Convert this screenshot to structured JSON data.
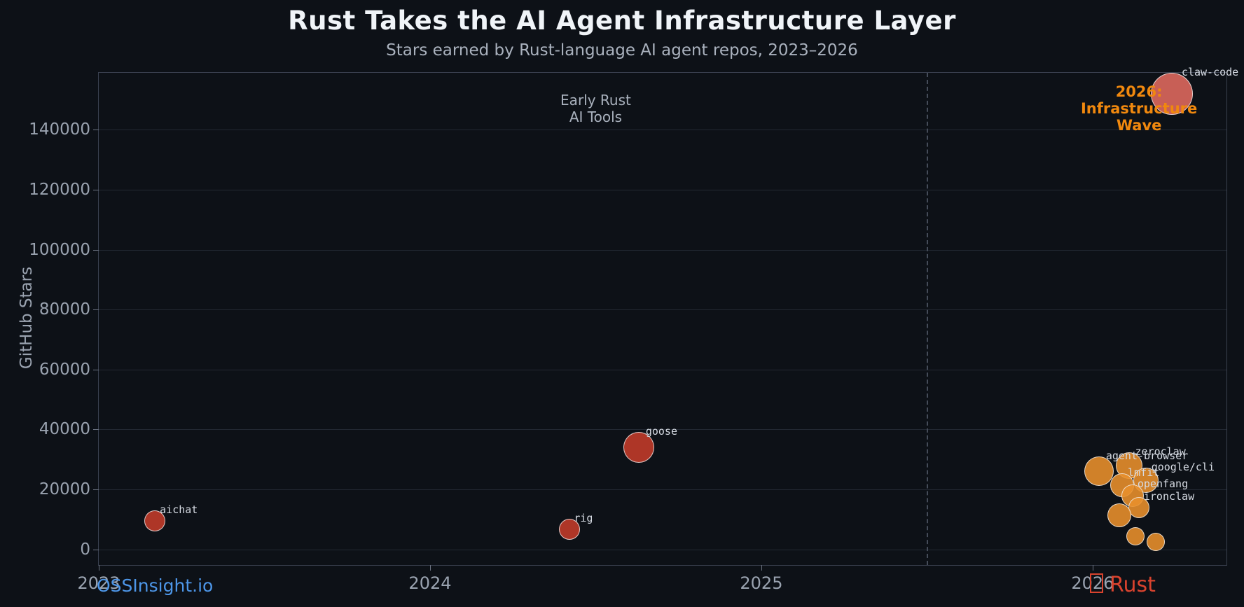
{
  "chart": {
    "title": "Rust Takes the AI Agent Infrastructure Layer",
    "subtitle": "Stars earned by Rust-language AI agent repos, 2023–2026",
    "ylabel": "GitHub Stars"
  },
  "footer": {
    "left": "OSSInsight.io",
    "right": "Rust",
    "right_icon": "crab-emoji-missing-glyph"
  },
  "colors": {
    "background": "#0d1117",
    "grid": "#232933",
    "spine": "#3a4150",
    "tick_text": "#9aa3b0",
    "title_text": "#f0f4f8",
    "subtitle_text": "#a9b1bd",
    "early_red": "#c23b2a",
    "wave_orange": "#e8902c",
    "highlight_salmon": "#e06a5e",
    "annotation_orange": "#f0880e",
    "footer_blue": "#4d96e8",
    "rust_red": "#d9432e"
  },
  "chart_data": {
    "type": "scatter",
    "title": "Rust Takes the AI Agent Infrastructure Layer",
    "subtitle": "Stars earned by Rust-language AI agent repos, 2023–2026",
    "xlabel": "",
    "ylabel": "GitHub Stars",
    "xlim": [
      2023,
      2026.404
    ],
    "ylim": [
      -5200,
      159000
    ],
    "x_ticks": [
      2023,
      2024,
      2025,
      2026
    ],
    "y_ticks": [
      0,
      20000,
      40000,
      60000,
      80000,
      100000,
      120000,
      140000
    ],
    "grid": "horizontal",
    "legend": "none",
    "vline": {
      "x": 2025.5,
      "style": "dashed"
    },
    "points": [
      {
        "repo": "aichat",
        "x": 2023.17,
        "stars": 9500,
        "r": 15,
        "color": "#c23b2a",
        "label_shown": true
      },
      {
        "repo": "rig",
        "x": 2024.42,
        "stars": 6800,
        "r": 15,
        "color": "#c23b2a",
        "label_shown": true
      },
      {
        "repo": "goose",
        "x": 2024.63,
        "stars": 34000,
        "r": 22,
        "color": "#c23b2a",
        "label_shown": true
      },
      {
        "repo": "agent-browser",
        "x": 2026.02,
        "stars": 26000,
        "r": 21,
        "color": "#e8902c",
        "label_shown": true
      },
      {
        "repo": "zeroclaw",
        "x": 2026.11,
        "stars": 28000,
        "r": 19,
        "color": "#e8902c",
        "label_shown": true
      },
      {
        "repo": "lmfit",
        "x": 2026.09,
        "stars": 21500,
        "r": 17,
        "color": "#e8902c",
        "label_shown": true
      },
      {
        "repo": "google/cli",
        "x": 2026.16,
        "stars": 23000,
        "r": 18,
        "color": "#e8902c",
        "label_shown": true
      },
      {
        "repo": "openfang",
        "x": 2026.12,
        "stars": 18000,
        "r": 16,
        "color": "#e8902c",
        "label_shown": true
      },
      {
        "repo": "ironclaw",
        "x": 2026.14,
        "stars": 14000,
        "r": 15,
        "color": "#e8902c",
        "label_shown": true
      },
      {
        "repo": "",
        "x": 2026.08,
        "stars": 11400,
        "r": 17,
        "color": "#e8902c",
        "label_shown": false
      },
      {
        "repo": "",
        "x": 2026.13,
        "stars": 4400,
        "r": 13,
        "color": "#e8902c",
        "label_shown": false
      },
      {
        "repo": "",
        "x": 2026.19,
        "stars": 2500,
        "r": 13,
        "color": "#e8902c",
        "label_shown": false
      },
      {
        "repo": "claw-code",
        "x": 2026.24,
        "stars": 152000,
        "r": 30,
        "color": "#e06a5e",
        "label_shown": true
      }
    ],
    "annotations": [
      {
        "text": "Early Rust\nAI Tools",
        "x": 2024.5,
        "y": 147000,
        "color": "#a9b1bd",
        "bold": false
      },
      {
        "text": "2026: Infrastructure\nWave",
        "x": 2026.14,
        "y": 147000,
        "color": "#f0880e",
        "bold": true
      }
    ]
  }
}
